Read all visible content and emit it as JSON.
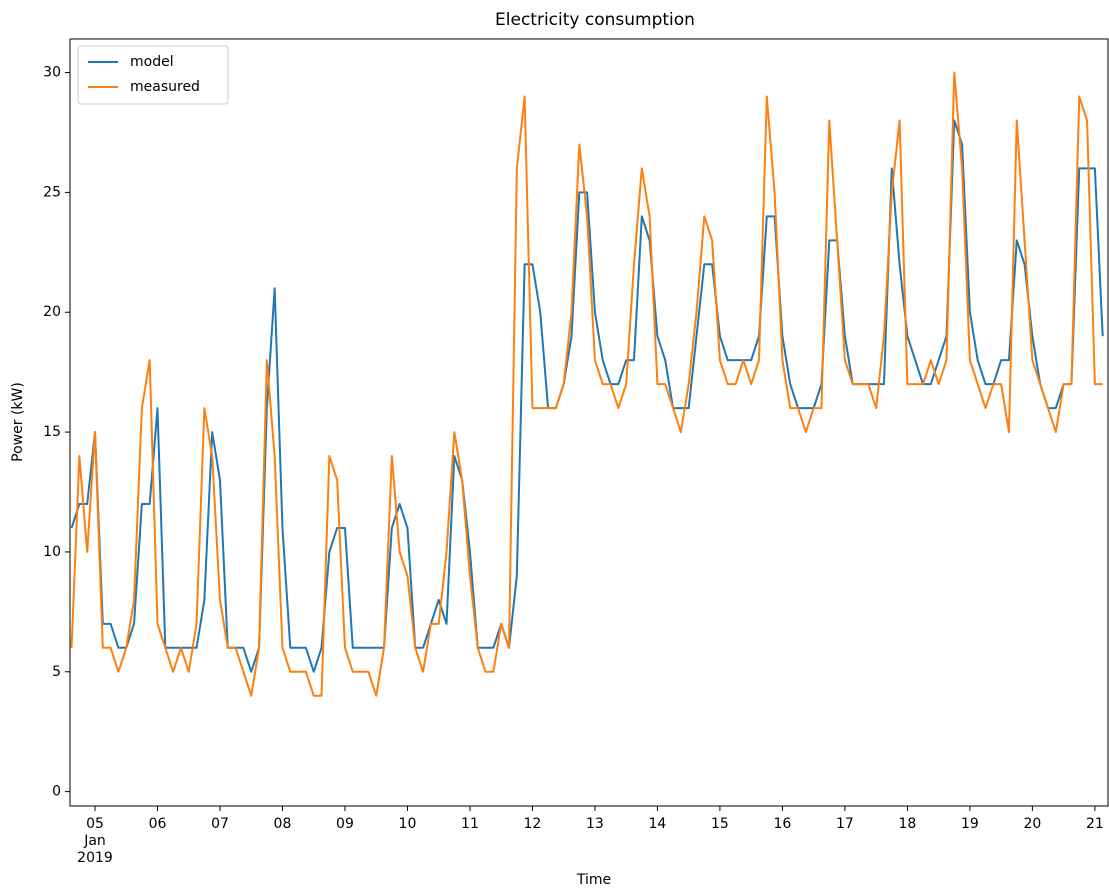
{
  "chart_data": {
    "type": "line",
    "title": "Electricity consumption",
    "x_label": "Time",
    "y_label": "Power (kW)",
    "x_tick_month": "Jan",
    "x_tick_year": "2019",
    "x": [
      4.625,
      4.75,
      4.875,
      5,
      5.125,
      5.25,
      5.375,
      5.5,
      5.625,
      5.75,
      5.875,
      6,
      6.125,
      6.25,
      6.375,
      6.5,
      6.625,
      6.75,
      6.875,
      7,
      7.125,
      7.25,
      7.375,
      7.5,
      7.625,
      7.75,
      7.875,
      8,
      8.125,
      8.25,
      8.375,
      8.5,
      8.625,
      8.75,
      8.875,
      9,
      9.125,
      9.25,
      9.375,
      9.5,
      9.625,
      9.75,
      9.875,
      10,
      10.125,
      10.25,
      10.375,
      10.5,
      10.625,
      10.75,
      10.875,
      11,
      11.125,
      11.25,
      11.375,
      11.5,
      11.625,
      11.75,
      11.875,
      12,
      12.125,
      12.25,
      12.375,
      12.5,
      12.625,
      12.75,
      12.875,
      13,
      13.125,
      13.25,
      13.375,
      13.5,
      13.625,
      13.75,
      13.875,
      14,
      14.125,
      14.25,
      14.375,
      14.5,
      14.625,
      14.75,
      14.875,
      15,
      15.125,
      15.25,
      15.375,
      15.5,
      15.625,
      15.75,
      15.875,
      16,
      16.125,
      16.25,
      16.375,
      16.5,
      16.625,
      16.75,
      16.875,
      17,
      17.125,
      17.25,
      17.375,
      17.5,
      17.625,
      17.75,
      17.875,
      18,
      18.125,
      18.25,
      18.375,
      18.5,
      18.625,
      18.75,
      18.875,
      19,
      19.125,
      19.25,
      19.375,
      19.5,
      19.625,
      19.75,
      19.875,
      20,
      20.125,
      20.25,
      20.375,
      20.5,
      20.625,
      20.75,
      20.875,
      21,
      21.125
    ],
    "series": [
      {
        "name": "model",
        "color": "#1f77b4",
        "values": [
          11,
          12,
          12,
          15,
          7,
          7,
          6,
          6,
          7,
          12,
          12,
          16,
          6,
          6,
          6,
          6,
          6,
          8,
          15,
          13,
          6,
          6,
          6,
          5,
          6,
          16,
          21,
          11,
          6,
          6,
          6,
          5,
          6,
          10,
          11,
          11,
          6,
          6,
          6,
          6,
          6,
          11,
          12,
          11,
          6,
          6,
          7,
          8,
          7,
          14,
          13,
          10,
          6,
          6,
          6,
          7,
          6,
          9,
          22,
          22,
          20,
          16,
          16,
          17,
          19,
          25,
          25,
          20,
          18,
          17,
          17,
          18,
          18,
          24,
          23,
          19,
          18,
          16,
          16,
          16,
          19,
          22,
          22,
          19,
          18,
          18,
          18,
          18,
          19,
          24,
          24,
          19,
          17,
          16,
          16,
          16,
          17,
          23,
          23,
          19,
          17,
          17,
          17,
          17,
          17,
          26,
          22,
          19,
          18,
          17,
          17,
          18,
          19,
          28,
          27,
          20,
          18,
          17,
          17,
          18,
          18,
          23,
          22,
          19,
          17,
          16,
          16,
          17,
          17,
          26,
          26,
          26,
          19
        ]
      },
      {
        "name": "measured",
        "color": "#ff7f0e",
        "values": [
          6,
          14,
          10,
          15,
          6,
          6,
          5,
          6,
          8,
          16,
          18,
          7,
          6,
          5,
          6,
          5,
          7,
          16,
          14,
          8,
          6,
          6,
          5,
          4,
          6,
          18,
          14,
          6,
          5,
          5,
          5,
          4,
          4,
          14,
          13,
          6,
          5,
          5,
          5,
          4,
          6,
          14,
          10,
          9,
          6,
          5,
          7,
          7,
          10,
          15,
          13,
          9,
          6,
          5,
          5,
          7,
          6,
          26,
          29,
          16,
          16,
          16,
          16,
          17,
          20,
          27,
          24,
          18,
          17,
          17,
          16,
          17,
          22,
          26,
          24,
          17,
          17,
          16,
          15,
          17,
          20,
          24,
          23,
          18,
          17,
          17,
          18,
          17,
          18,
          29,
          25,
          18,
          16,
          16,
          15,
          16,
          16,
          28,
          23,
          18,
          17,
          17,
          17,
          16,
          19,
          25,
          28,
          17,
          17,
          17,
          18,
          17,
          18,
          30,
          26,
          18,
          17,
          16,
          17,
          17,
          15,
          28,
          23,
          18,
          17,
          16,
          15,
          17,
          17,
          29,
          28,
          17,
          17
        ]
      }
    ],
    "xlim": [
      4.6,
      21.21
    ],
    "ylim": [
      -0.6,
      31.4
    ],
    "xticks": [
      {
        "value": 5,
        "label": "05"
      },
      {
        "value": 6,
        "label": "06"
      },
      {
        "value": 7,
        "label": "07"
      },
      {
        "value": 8,
        "label": "08"
      },
      {
        "value": 9,
        "label": "09"
      },
      10,
      11,
      12,
      13,
      14,
      15,
      16,
      17,
      18,
      19,
      20,
      21
    ],
    "yticks": [
      0,
      5,
      10,
      15,
      20,
      25,
      30
    ],
    "grid": false,
    "legend": "upper left"
  }
}
